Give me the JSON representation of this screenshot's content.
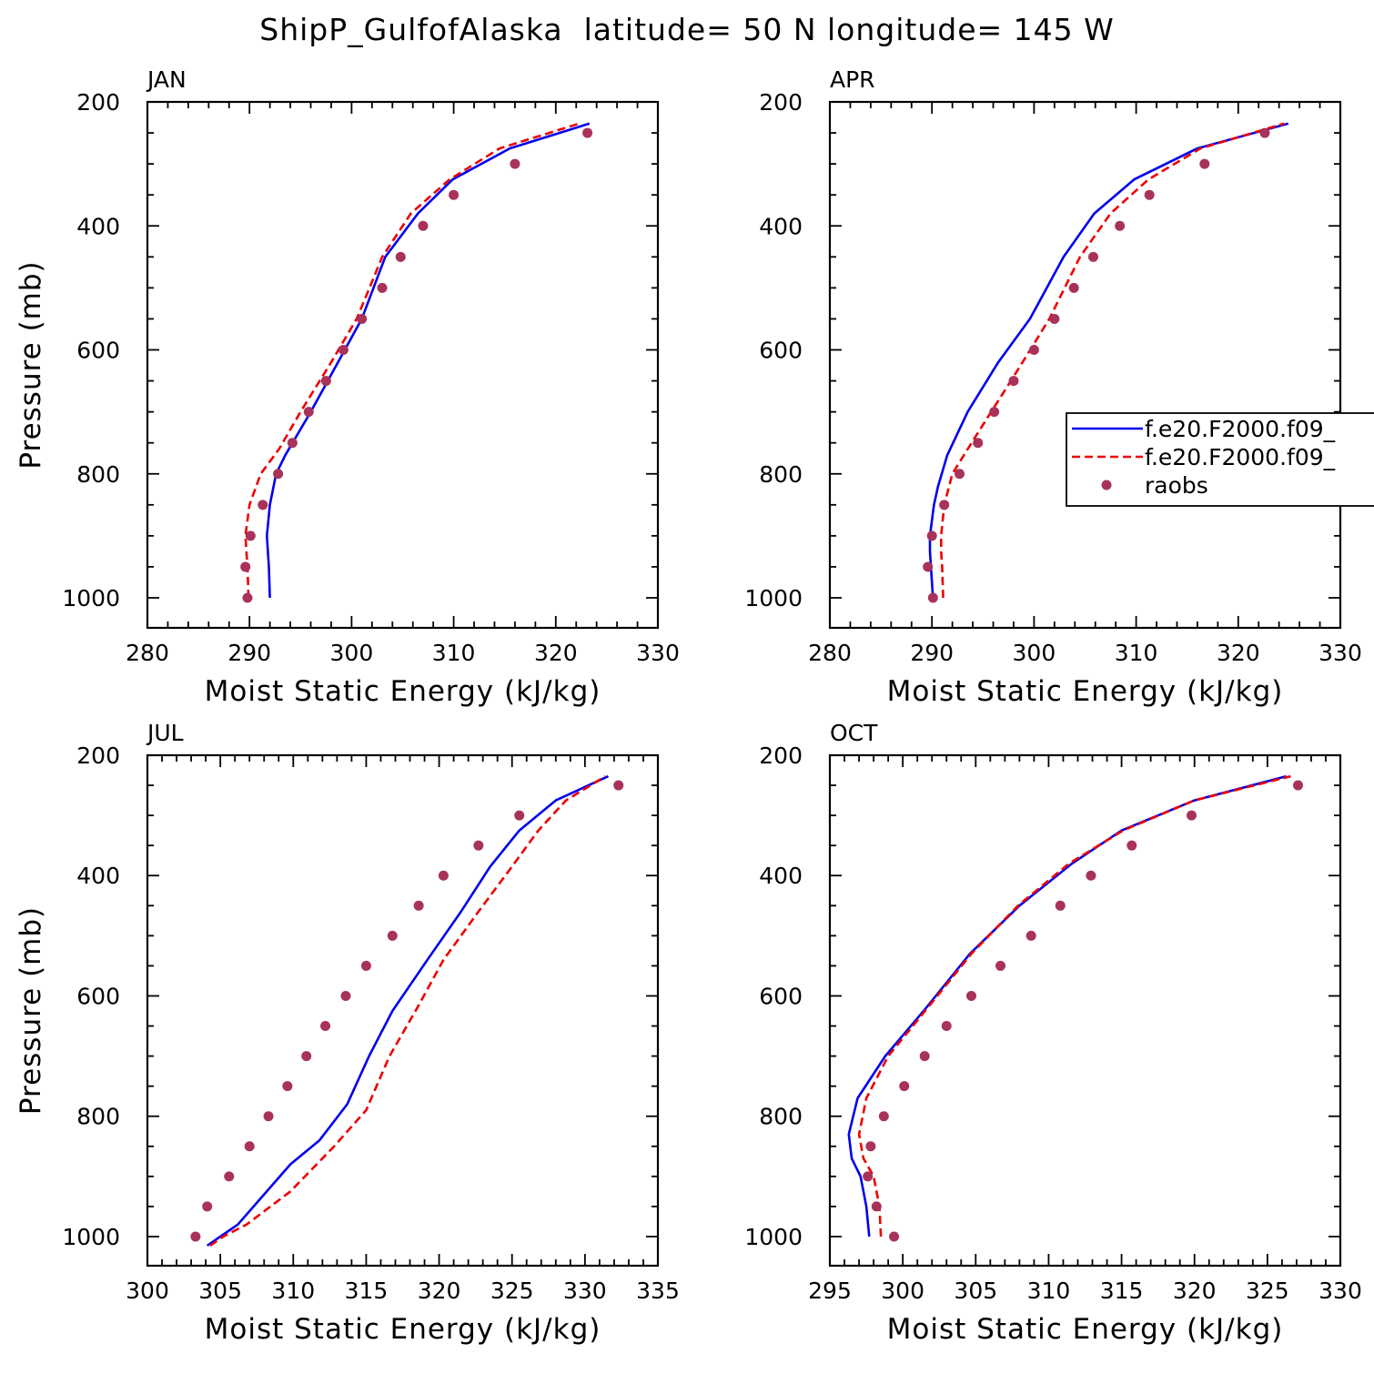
{
  "figure": {
    "title": "ShipP_GulfofAlaska  latitude= 50 N longitude= 145 W"
  },
  "legend": {
    "entries": [
      "f.e20.F2000.f09_",
      "f.e20.F2000.f09_",
      "raobs"
    ],
    "styles": [
      "solid",
      "dashed",
      "dot"
    ],
    "colors": [
      "#0000ee",
      "#ee0000",
      "#a8325a"
    ]
  },
  "chart_data": [
    {
      "type": "line",
      "panel": "JAN",
      "xlabel": "Moist Static Energy (kJ/kg)",
      "ylabel": "Pressure (mb)",
      "xlim": [
        280,
        330
      ],
      "ylim": [
        1000,
        200
      ],
      "y_reversed": true,
      "xticks": [
        280,
        290,
        300,
        310,
        320,
        330
      ],
      "yticks": [
        200,
        400,
        600,
        800,
        1000
      ],
      "series": [
        {
          "style": "solid",
          "color": "#0000ee",
          "x": [
            292.0,
            291.9,
            291.8,
            291.7,
            292.0,
            292.6,
            293.5,
            296.0,
            298.5,
            301.0,
            303.3,
            306.5,
            309.9,
            315.5,
            323.3
          ],
          "y": [
            1000,
            950,
            925,
            900,
            850,
            800,
            770,
            700,
            625,
            550,
            450,
            380,
            325,
            275,
            235
          ]
        },
        {
          "style": "dashed",
          "color": "#ee0000",
          "x": [
            289.9,
            289.8,
            289.7,
            289.6,
            290.0,
            291.1,
            292.9,
            295.0,
            298.0,
            300.5,
            303.0,
            305.8,
            309.6,
            314.5,
            322.3
          ],
          "y": [
            1000,
            950,
            925,
            900,
            850,
            800,
            760,
            700,
            620,
            550,
            450,
            380,
            325,
            275,
            235
          ]
        },
        {
          "style": "dot",
          "color": "#a8325a",
          "x": [
            289.8,
            289.6,
            290.1,
            291.3,
            292.8,
            294.2,
            295.8,
            297.5,
            299.2,
            301.0,
            303.0,
            304.8,
            307.0,
            310.0,
            316.0,
            323.1
          ],
          "y": [
            1000,
            950,
            900,
            850,
            800,
            750,
            700,
            650,
            600,
            550,
            500,
            450,
            400,
            350,
            300,
            250
          ]
        }
      ]
    },
    {
      "type": "line",
      "panel": "APR",
      "xlabel": "Moist Static Energy (kJ/kg)",
      "ylabel": "",
      "xlim": [
        280,
        330
      ],
      "ylim": [
        1000,
        200
      ],
      "y_reversed": true,
      "xticks": [
        280,
        290,
        300,
        310,
        320,
        330
      ],
      "yticks": [
        200,
        400,
        600,
        800,
        1000
      ],
      "series": [
        {
          "style": "solid",
          "color": "#0000ee",
          "x": [
            290.1,
            289.9,
            289.8,
            289.8,
            290.2,
            290.6,
            291.5,
            293.5,
            296.5,
            299.6,
            302.9,
            305.9,
            309.8,
            316.0,
            324.9
          ],
          "y": [
            1000,
            950,
            925,
            900,
            850,
            820,
            770,
            700,
            620,
            550,
            450,
            380,
            325,
            275,
            235
          ]
        },
        {
          "style": "dashed",
          "color": "#ee0000",
          "x": [
            291.1,
            291.0,
            290.9,
            290.9,
            291.2,
            292.0,
            293.5,
            295.8,
            298.5,
            301.5,
            304.5,
            307.5,
            311.2,
            316.3,
            324.5
          ],
          "y": [
            1000,
            950,
            925,
            900,
            850,
            800,
            760,
            700,
            630,
            550,
            450,
            380,
            325,
            275,
            235
          ]
        },
        {
          "style": "dot",
          "color": "#a8325a",
          "x": [
            290.1,
            289.6,
            290.0,
            291.2,
            292.7,
            294.5,
            296.1,
            298.0,
            300.0,
            302.0,
            303.9,
            305.8,
            308.4,
            311.3,
            316.7,
            322.6
          ],
          "y": [
            1000,
            950,
            900,
            850,
            800,
            750,
            700,
            650,
            600,
            550,
            500,
            450,
            400,
            350,
            300,
            250
          ]
        }
      ]
    },
    {
      "type": "line",
      "panel": "JUL",
      "xlabel": "Moist Static Energy (kJ/kg)",
      "ylabel": "Pressure (mb)",
      "xlim": [
        300,
        335
      ],
      "ylim": [
        1000,
        200
      ],
      "y_reversed": true,
      "xticks": [
        300,
        305,
        310,
        315,
        320,
        325,
        330,
        335
      ],
      "yticks": [
        200,
        400,
        600,
        800,
        1000
      ],
      "series": [
        {
          "style": "solid",
          "color": "#0000ee",
          "x": [
            304.1,
            305.0,
            306.2,
            309.8,
            311.8,
            313.7,
            315.2,
            316.8,
            319.2,
            321.5,
            323.5,
            325.5,
            328.0,
            331.6
          ],
          "y": [
            1015,
            1000,
            980,
            880,
            840,
            780,
            700,
            625,
            540,
            460,
            385,
            325,
            275,
            235
          ]
        },
        {
          "style": "dashed",
          "color": "#ee0000",
          "x": [
            304.3,
            305.2,
            306.8,
            309.8,
            312.8,
            315.0,
            316.6,
            318.5,
            320.3,
            322.7,
            325.0,
            326.8,
            328.7,
            331.4
          ],
          "y": [
            1015,
            1000,
            980,
            925,
            850,
            790,
            700,
            620,
            540,
            460,
            385,
            325,
            275,
            235
          ]
        },
        {
          "style": "dot",
          "color": "#a8325a",
          "x": [
            303.3,
            304.1,
            305.6,
            307.0,
            308.3,
            309.6,
            310.9,
            312.2,
            313.6,
            315.0,
            316.8,
            318.6,
            320.3,
            322.7,
            325.5,
            332.3
          ],
          "y": [
            1000,
            950,
            900,
            850,
            800,
            750,
            700,
            650,
            600,
            550,
            500,
            450,
            400,
            350,
            300,
            250
          ]
        }
      ]
    },
    {
      "type": "line",
      "panel": "OCT",
      "xlabel": "Moist Static Energy (kJ/kg)",
      "ylabel": "",
      "xlim": [
        295,
        330
      ],
      "ylim": [
        1000,
        200
      ],
      "y_reversed": true,
      "xticks": [
        295,
        300,
        305,
        310,
        315,
        320,
        325,
        330
      ],
      "yticks": [
        200,
        400,
        600,
        800,
        1000
      ],
      "series": [
        {
          "style": "solid",
          "color": "#0000ee",
          "x": [
            297.7,
            297.5,
            297.1,
            296.5,
            296.3,
            296.9,
            298.8,
            301.6,
            304.6,
            308.0,
            311.6,
            315.0,
            320.0,
            326.3
          ],
          "y": [
            1000,
            950,
            900,
            870,
            830,
            770,
            700,
            620,
            530,
            450,
            380,
            325,
            275,
            235
          ]
        },
        {
          "style": "dashed",
          "color": "#ee0000",
          "x": [
            298.5,
            298.4,
            298.0,
            297.3,
            297.0,
            297.5,
            299.0,
            301.7,
            304.7,
            307.9,
            311.4,
            315.1,
            320.0,
            326.6
          ],
          "y": [
            1000,
            950,
            900,
            870,
            830,
            770,
            700,
            620,
            530,
            450,
            380,
            325,
            275,
            235
          ]
        },
        {
          "style": "dot",
          "color": "#a8325a",
          "x": [
            299.4,
            298.2,
            297.6,
            297.8,
            298.7,
            300.1,
            301.5,
            303.0,
            304.7,
            306.7,
            308.8,
            310.8,
            312.9,
            315.7,
            319.8,
            327.1
          ],
          "y": [
            1000,
            950,
            900,
            850,
            800,
            750,
            700,
            650,
            600,
            550,
            500,
            450,
            400,
            350,
            300,
            250
          ]
        }
      ]
    }
  ]
}
